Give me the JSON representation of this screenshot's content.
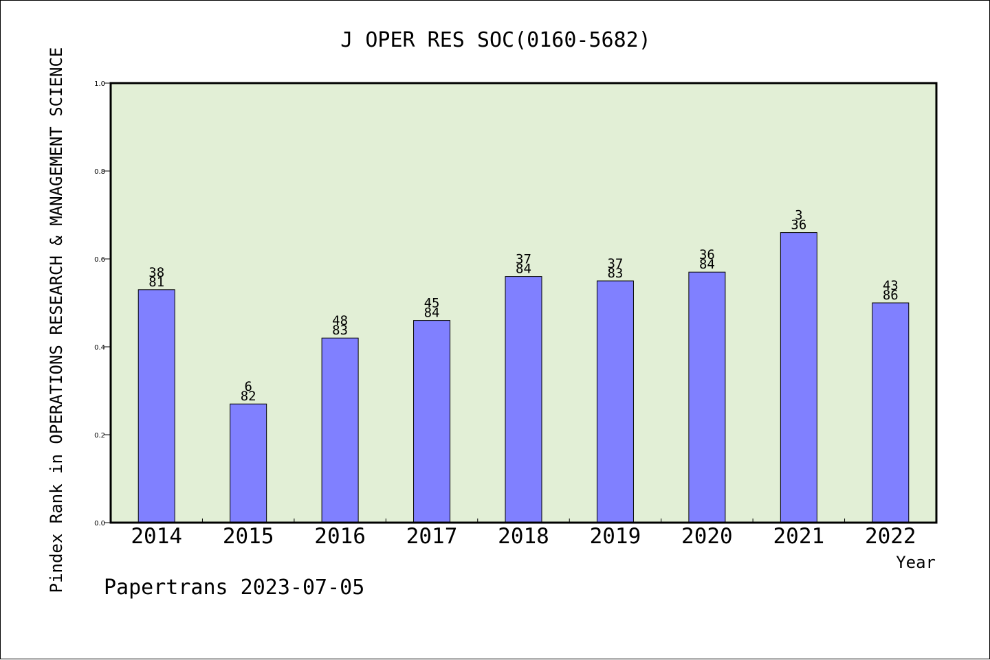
{
  "chart_data": {
    "type": "bar",
    "title": "J OPER RES SOC(0160-5682)",
    "xlabel": "Year",
    "ylabel": "Pindex Rank in OPERATIONS RESEARCH & MANAGEMENT SCIENCE",
    "ylim": [
      0,
      1.0
    ],
    "yticks": [
      "0.0",
      "0.2",
      "0.4",
      "0.6",
      "0.8",
      "1.0"
    ],
    "grid": false,
    "categories": [
      "2014",
      "2015",
      "2016",
      "2017",
      "2018",
      "2019",
      "2020",
      "2021",
      "2022"
    ],
    "values": [
      0.53,
      0.27,
      0.42,
      0.46,
      0.56,
      0.55,
      0.57,
      0.66,
      0.5
    ],
    "rank_labels": [
      "38",
      "6",
      "48",
      "45",
      "37",
      "37",
      "36",
      "3",
      "43"
    ],
    "total_labels": [
      "81",
      "82",
      "83",
      "84",
      "84",
      "83",
      "84",
      "36",
      "86"
    ],
    "footer": "Papertrans 2023-07-05",
    "colors": {
      "plot_background": "#e2efd6",
      "bar_fill": "#8080ff",
      "bar_stroke": "#000000",
      "axis": "#000000"
    }
  }
}
